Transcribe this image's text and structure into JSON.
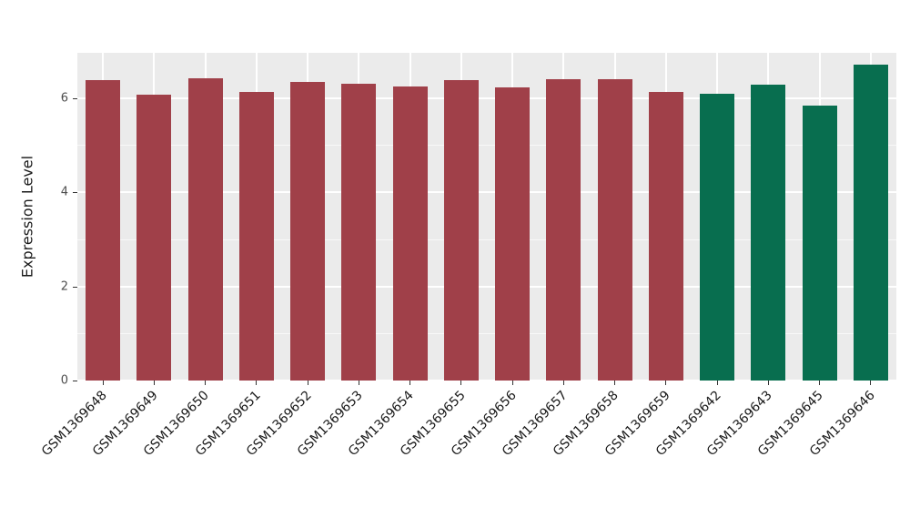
{
  "chart_data": {
    "type": "bar",
    "title": "",
    "xlabel": "",
    "ylabel": "Expression Level",
    "ylim": [
      0,
      6.97
    ],
    "yticks_major": [
      0,
      2,
      4,
      6
    ],
    "yticks_minor": [
      1,
      3,
      5
    ],
    "grid": "white major and minor horizontal gridlines plus vertical category gridlines on light gray panel",
    "legend": "none",
    "panel_background": "#EBEBEB",
    "categories": [
      "GSM1369648",
      "GSM1369649",
      "GSM1369650",
      "GSM1369651",
      "GSM1369652",
      "GSM1369653",
      "GSM1369654",
      "GSM1369655",
      "GSM1369656",
      "GSM1369657",
      "GSM1369658",
      "GSM1369659",
      "GSM1369642",
      "GSM1369643",
      "GSM1369645",
      "GSM1369646"
    ],
    "values": [
      6.39,
      6.08,
      6.43,
      6.14,
      6.36,
      6.31,
      6.26,
      6.38,
      6.23,
      6.41,
      6.41,
      6.14,
      6.1,
      6.3,
      5.85,
      6.72
    ],
    "bar_groups": [
      "groupA",
      "groupA",
      "groupA",
      "groupA",
      "groupA",
      "groupA",
      "groupA",
      "groupA",
      "groupA",
      "groupA",
      "groupA",
      "groupA",
      "groupB",
      "groupB",
      "groupB",
      "groupB"
    ],
    "group_colors": {
      "groupA": "#A04049",
      "groupB": "#086E4F"
    }
  }
}
